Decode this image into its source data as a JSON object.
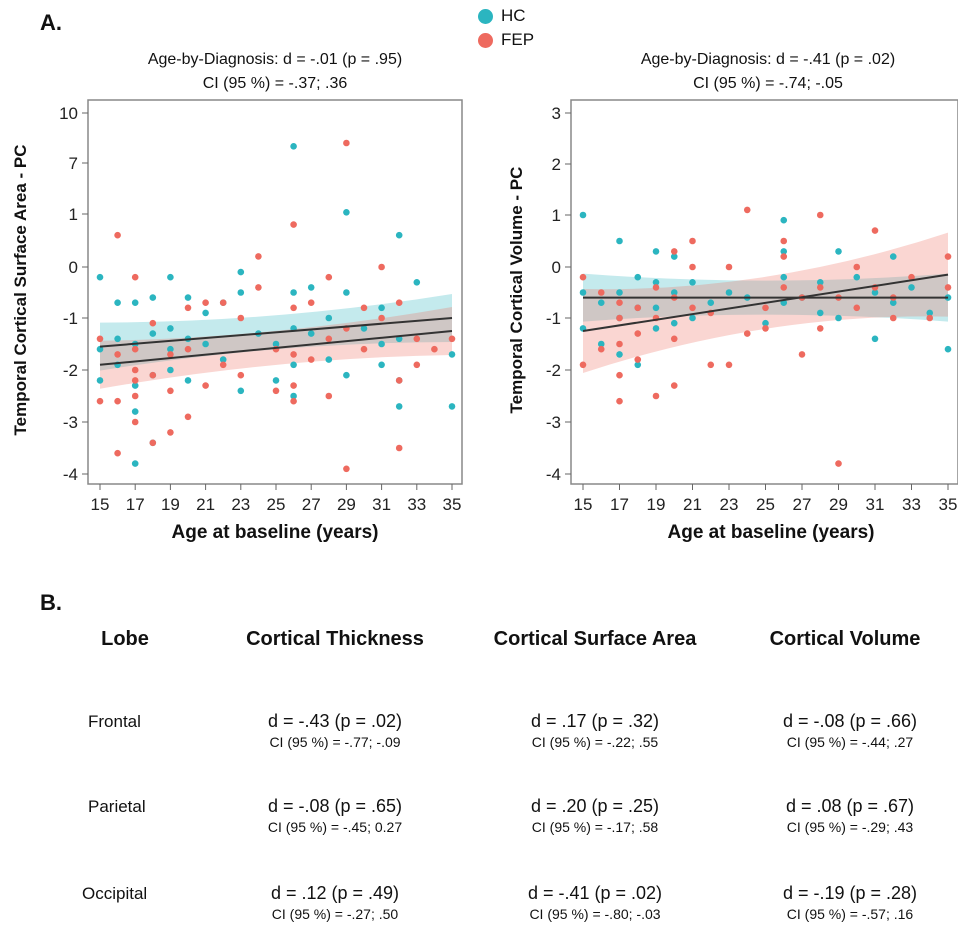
{
  "panel_a_label": "A.",
  "panel_b_label": "B.",
  "legend": [
    {
      "name": "HC",
      "color": "#2bb5c0"
    },
    {
      "name": "FEP",
      "color": "#ee6a5f"
    }
  ],
  "chart_data": [
    {
      "type": "scatter",
      "title": "Age-by-Diagnosis: d = -.01 (p = .95)",
      "subtitle": "CI (95 %) = -.37; .36",
      "xlabel": "Age at baseline (years)",
      "ylabel": "Temporal Cortical Surface Area - PC",
      "xlim": [
        14.5,
        35.2
      ],
      "ylim": [
        -4.2,
        10.3
      ],
      "yaxis_scale": "non-uniform (tick spacing shown evenly)",
      "xticks": [
        15,
        17,
        19,
        21,
        23,
        25,
        27,
        29,
        31,
        33,
        35
      ],
      "ytick_labels": [
        "10",
        "7",
        "1",
        "0",
        "-1",
        "-2",
        "-3",
        "-4"
      ],
      "series": [
        {
          "name": "HC",
          "color": "#2bb5c0",
          "points": [
            [
              15,
              -0.2
            ],
            [
              15,
              -1.6
            ],
            [
              15,
              -2.2
            ],
            [
              16,
              -0.7
            ],
            [
              16,
              -1.4
            ],
            [
              16,
              -1.9
            ],
            [
              17,
              -0.7
            ],
            [
              17,
              -1.5
            ],
            [
              17,
              -2.3
            ],
            [
              17,
              -2.8
            ],
            [
              17,
              -3.8
            ],
            [
              18,
              -0.6
            ],
            [
              18,
              -1.3
            ],
            [
              18,
              -2.1
            ],
            [
              18,
              -3.4
            ],
            [
              19,
              -0.2
            ],
            [
              19,
              -1.2
            ],
            [
              19,
              -1.6
            ],
            [
              19,
              -2.0
            ],
            [
              20,
              -0.6
            ],
            [
              20,
              -1.4
            ],
            [
              20,
              -2.2
            ],
            [
              21,
              -0.9
            ],
            [
              21,
              -1.5
            ],
            [
              22,
              -0.7
            ],
            [
              22,
              -1.8
            ],
            [
              23,
              -0.1
            ],
            [
              23,
              -0.5
            ],
            [
              23,
              -2.4
            ],
            [
              24,
              -1.3
            ],
            [
              25,
              -1.5
            ],
            [
              25,
              -2.2
            ],
            [
              26,
              8.0
            ],
            [
              26,
              -0.5
            ],
            [
              26,
              -1.2
            ],
            [
              26,
              -1.9
            ],
            [
              26,
              -2.5
            ],
            [
              27,
              -0.4
            ],
            [
              27,
              -1.3
            ],
            [
              28,
              -1.0
            ],
            [
              28,
              -1.8
            ],
            [
              29,
              1.2
            ],
            [
              29,
              -0.5
            ],
            [
              29,
              -2.1
            ],
            [
              30,
              -1.2
            ],
            [
              31,
              -0.8
            ],
            [
              31,
              -1.5
            ],
            [
              31,
              -1.9
            ],
            [
              32,
              0.6
            ],
            [
              32,
              -1.4
            ],
            [
              32,
              -2.2
            ],
            [
              32,
              -2.7
            ],
            [
              33,
              -0.3
            ],
            [
              35,
              -1.7
            ],
            [
              35,
              -2.7
            ]
          ]
        },
        {
          "name": "FEP",
          "color": "#ee6a5f",
          "points": [
            [
              15,
              -1.4
            ],
            [
              15,
              -2.6
            ],
            [
              16,
              0.6
            ],
            [
              16,
              -1.7
            ],
            [
              16,
              -2.6
            ],
            [
              16,
              -3.6
            ],
            [
              17,
              -0.2
            ],
            [
              17,
              -1.6
            ],
            [
              17,
              -2.0
            ],
            [
              17,
              -2.2
            ],
            [
              17,
              -2.5
            ],
            [
              17,
              -3.0
            ],
            [
              18,
              -1.1
            ],
            [
              18,
              -2.1
            ],
            [
              18,
              -3.4
            ],
            [
              19,
              -1.7
            ],
            [
              19,
              -2.4
            ],
            [
              19,
              -3.2
            ],
            [
              20,
              -0.8
            ],
            [
              20,
              -1.6
            ],
            [
              20,
              -2.9
            ],
            [
              21,
              -0.7
            ],
            [
              21,
              -2.3
            ],
            [
              22,
              -0.7
            ],
            [
              22,
              -1.9
            ],
            [
              23,
              -1.0
            ],
            [
              23,
              -2.1
            ],
            [
              24,
              0.2
            ],
            [
              24,
              -0.4
            ],
            [
              25,
              -1.6
            ],
            [
              25,
              -2.4
            ],
            [
              26,
              0.8
            ],
            [
              26,
              -0.8
            ],
            [
              26,
              -1.7
            ],
            [
              26,
              -2.3
            ],
            [
              26,
              -2.6
            ],
            [
              27,
              -0.7
            ],
            [
              27,
              -1.8
            ],
            [
              28,
              -0.2
            ],
            [
              28,
              -1.4
            ],
            [
              28,
              -2.5
            ],
            [
              29,
              8.2
            ],
            [
              29,
              -1.2
            ],
            [
              29,
              -3.9
            ],
            [
              30,
              -0.8
            ],
            [
              30,
              -1.6
            ],
            [
              31,
              0.0
            ],
            [
              31,
              -1.0
            ],
            [
              32,
              -0.7
            ],
            [
              32,
              -2.2
            ],
            [
              32,
              -3.5
            ],
            [
              33,
              -1.4
            ],
            [
              33,
              -1.9
            ],
            [
              34,
              -1.6
            ],
            [
              35,
              -1.4
            ]
          ]
        }
      ],
      "fit_lines": [
        {
          "name": "HC",
          "from": [
            15,
            -1.55
          ],
          "to": [
            35,
            -1.0
          ]
        },
        {
          "name": "FEP",
          "from": [
            15,
            -1.9
          ],
          "to": [
            35,
            -1.25
          ]
        }
      ]
    },
    {
      "type": "scatter",
      "title": "Age-by-Diagnosis: d = -.41 (p = .02)",
      "subtitle": "CI (95 %) = -.74; -.05",
      "xlabel": "Age at baseline (years)",
      "ylabel": "Temporal Cortical Volume - PC",
      "xlim": [
        14.5,
        35.2
      ],
      "ylim": [
        -4.2,
        3.2
      ],
      "xticks": [
        15,
        17,
        19,
        21,
        23,
        25,
        27,
        29,
        31,
        33,
        35
      ],
      "yticks": [
        3,
        2,
        1,
        0,
        -1,
        -2,
        -3,
        -4
      ],
      "series": [
        {
          "name": "HC",
          "color": "#2bb5c0",
          "points": [
            [
              15,
              1.0
            ],
            [
              15,
              -0.5
            ],
            [
              15,
              -1.2
            ],
            [
              16,
              -0.7
            ],
            [
              16,
              -1.5
            ],
            [
              17,
              0.5
            ],
            [
              17,
              -0.5
            ],
            [
              17,
              -1.0
            ],
            [
              17,
              -1.7
            ],
            [
              18,
              -0.2
            ],
            [
              18,
              -0.8
            ],
            [
              18,
              -1.9
            ],
            [
              19,
              0.3
            ],
            [
              19,
              -0.3
            ],
            [
              19,
              -0.8
            ],
            [
              19,
              -1.2
            ],
            [
              20,
              0.2
            ],
            [
              20,
              -0.5
            ],
            [
              20,
              -1.1
            ],
            [
              21,
              -0.3
            ],
            [
              21,
              -1.0
            ],
            [
              22,
              -0.7
            ],
            [
              23,
              -0.5
            ],
            [
              24,
              -0.6
            ],
            [
              25,
              -1.1
            ],
            [
              26,
              0.9
            ],
            [
              26,
              0.3
            ],
            [
              26,
              -0.2
            ],
            [
              26,
              -0.7
            ],
            [
              27,
              -0.6
            ],
            [
              28,
              -0.3
            ],
            [
              28,
              -0.9
            ],
            [
              29,
              0.3
            ],
            [
              29,
              -1.0
            ],
            [
              30,
              -0.2
            ],
            [
              31,
              -0.5
            ],
            [
              31,
              -1.4
            ],
            [
              32,
              0.2
            ],
            [
              32,
              -0.7
            ],
            [
              33,
              -0.4
            ],
            [
              34,
              -0.9
            ],
            [
              35,
              -0.6
            ],
            [
              35,
              -1.6
            ]
          ]
        },
        {
          "name": "FEP",
          "color": "#ee6a5f",
          "points": [
            [
              15,
              -0.2
            ],
            [
              15,
              -1.9
            ],
            [
              16,
              -0.5
            ],
            [
              16,
              -1.6
            ],
            [
              17,
              -0.7
            ],
            [
              17,
              -1.0
            ],
            [
              17,
              -1.5
            ],
            [
              17,
              -2.1
            ],
            [
              17,
              -2.6
            ],
            [
              18,
              -0.8
            ],
            [
              18,
              -1.3
            ],
            [
              18,
              -1.8
            ],
            [
              19,
              -0.4
            ],
            [
              19,
              -1.0
            ],
            [
              19,
              -2.5
            ],
            [
              20,
              0.3
            ],
            [
              20,
              -0.6
            ],
            [
              20,
              -1.4
            ],
            [
              20,
              -2.3
            ],
            [
              21,
              0.5
            ],
            [
              21,
              0.0
            ],
            [
              21,
              -0.8
            ],
            [
              22,
              -0.9
            ],
            [
              22,
              -1.9
            ],
            [
              23,
              0.0
            ],
            [
              23,
              -1.9
            ],
            [
              24,
              1.1
            ],
            [
              24,
              -1.3
            ],
            [
              25,
              -0.8
            ],
            [
              25,
              -1.2
            ],
            [
              26,
              0.5
            ],
            [
              26,
              0.2
            ],
            [
              26,
              -0.4
            ],
            [
              27,
              -0.6
            ],
            [
              27,
              -1.7
            ],
            [
              28,
              1.0
            ],
            [
              28,
              -0.4
            ],
            [
              28,
              -1.2
            ],
            [
              29,
              -0.6
            ],
            [
              29,
              -3.8
            ],
            [
              30,
              0.0
            ],
            [
              30,
              -0.8
            ],
            [
              31,
              0.7
            ],
            [
              31,
              -0.4
            ],
            [
              32,
              -0.6
            ],
            [
              32,
              -1.0
            ],
            [
              33,
              -0.2
            ],
            [
              34,
              -1.0
            ],
            [
              35,
              0.2
            ],
            [
              35,
              -0.4
            ]
          ]
        }
      ],
      "fit_lines": [
        {
          "name": "HC",
          "from": [
            15,
            -0.6
          ],
          "to": [
            35,
            -0.6
          ]
        },
        {
          "name": "FEP",
          "from": [
            15,
            -1.25
          ],
          "to": [
            35,
            -0.15
          ]
        }
      ]
    }
  ],
  "table": {
    "headers": [
      "Lobe",
      "Cortical Thickness",
      "Cortical Surface Area",
      "Cortical Volume"
    ],
    "rows": [
      {
        "lobe": "Frontal",
        "cells": [
          {
            "d": "d = -.43 (p = .02)",
            "ci": "CI (95 %) = -.77; -.09"
          },
          {
            "d": "d = .17 (p = .32)",
            "ci": "CI (95 %) = -.22; .55"
          },
          {
            "d": "d = -.08 (p = .66)",
            "ci": "CI (95 %) = -.44; .27"
          }
        ]
      },
      {
        "lobe": "Parietal",
        "cells": [
          {
            "d": "d = -.08 (p = .65)",
            "ci": "CI (95 %) = -.45; 0.27"
          },
          {
            "d": "d = .20 (p = .25)",
            "ci": "CI (95 %) = -.17; .58"
          },
          {
            "d": "d = .08 (p = .67)",
            "ci": "CI (95 %) = -.29; .43"
          }
        ]
      },
      {
        "lobe": "Occipital",
        "cells": [
          {
            "d": "d = .12 (p = .49)",
            "ci": "CI (95 %) = -.27; .50"
          },
          {
            "d": "d = -.41 (p = .02)",
            "ci": "CI (95 %) = -.80; -.03"
          },
          {
            "d": "d = -.19 (p = .28)",
            "ci": "CI (95 %) = -.57; .16"
          }
        ]
      }
    ]
  }
}
